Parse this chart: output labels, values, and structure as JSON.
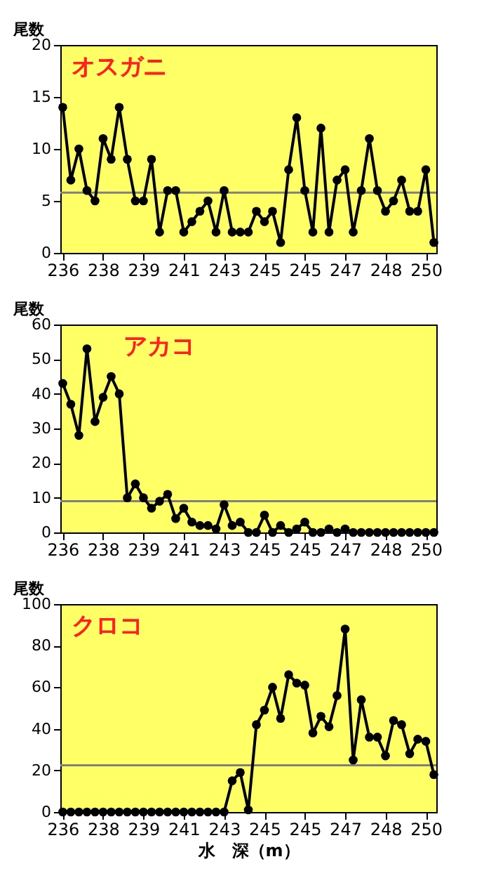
{
  "chart_data": [
    {
      "type": "line",
      "title": "オスガニ",
      "ylabel": "尾数",
      "categories": [
        "236",
        null,
        null,
        null,
        null,
        "238",
        null,
        null,
        null,
        null,
        "239",
        null,
        null,
        null,
        null,
        "241",
        null,
        null,
        null,
        null,
        "243",
        null,
        null,
        null,
        null,
        "245",
        null,
        null,
        null,
        null,
        "245",
        null,
        null,
        null,
        null,
        "247",
        null,
        null,
        null,
        null,
        "248",
        null,
        null,
        null,
        null,
        "250",
        null
      ],
      "series": [
        {
          "color": "#000000",
          "values": [
            14,
            7,
            10,
            6,
            5,
            11,
            9,
            14,
            9,
            5,
            5,
            9,
            2,
            6,
            6,
            2,
            3,
            4,
            5,
            2,
            6,
            2,
            2,
            2,
            4,
            3,
            4,
            1,
            8,
            13,
            6,
            2,
            12,
            2,
            7,
            8,
            2,
            6,
            11,
            6,
            4,
            5,
            7,
            4,
            4,
            8,
            1
          ]
        }
      ],
      "marker": "circle",
      "line_style": "solid",
      "ylim": [
        0,
        20
      ],
      "yticks": [
        0,
        5,
        10,
        15,
        20
      ],
      "grid": false,
      "ref_lines": [
        {
          "axis": "y",
          "value": 5.8,
          "color": "#808080"
        }
      ]
    },
    {
      "type": "line",
      "title": "アカコ",
      "ylabel": "尾数",
      "categories": [
        "236",
        null,
        null,
        null,
        null,
        "238",
        null,
        null,
        null,
        null,
        "239",
        null,
        null,
        null,
        null,
        "241",
        null,
        null,
        null,
        null,
        "243",
        null,
        null,
        null,
        null,
        "245",
        null,
        null,
        null,
        null,
        "245",
        null,
        null,
        null,
        null,
        "247",
        null,
        null,
        null,
        null,
        "248",
        null,
        null,
        null,
        null,
        "250",
        null
      ],
      "series": [
        {
          "color": "#000000",
          "values": [
            43,
            37,
            28,
            53,
            32,
            39,
            45,
            40,
            10,
            14,
            10,
            7,
            9,
            11,
            4,
            7,
            3,
            2,
            2,
            1,
            8,
            2,
            3,
            0,
            0,
            5,
            0,
            2,
            0,
            1,
            3,
            0,
            0,
            1,
            0,
            1,
            0,
            0,
            0,
            0,
            0,
            0,
            0,
            0,
            0,
            0,
            0
          ]
        }
      ],
      "marker": "circle",
      "line_style": "solid",
      "ylim": [
        0,
        60
      ],
      "yticks": [
        0,
        10,
        20,
        30,
        40,
        50,
        60
      ],
      "grid": false,
      "ref_lines": [
        {
          "axis": "y",
          "value": 9,
          "color": "#808080"
        }
      ]
    },
    {
      "type": "line",
      "title": "クロコ",
      "ylabel": "尾数",
      "xlabel": "水　深（m）",
      "categories": [
        "236",
        null,
        null,
        null,
        null,
        "238",
        null,
        null,
        null,
        null,
        "239",
        null,
        null,
        null,
        null,
        "241",
        null,
        null,
        null,
        null,
        "243",
        null,
        null,
        null,
        null,
        "245",
        null,
        null,
        null,
        null,
        "245",
        null,
        null,
        null,
        null,
        "247",
        null,
        null,
        null,
        null,
        "248",
        null,
        null,
        null,
        null,
        "250",
        null
      ],
      "series": [
        {
          "color": "#000000",
          "values": [
            0,
            0,
            0,
            0,
            0,
            0,
            0,
            0,
            0,
            0,
            0,
            0,
            0,
            0,
            0,
            0,
            0,
            0,
            0,
            0,
            0,
            15,
            19,
            1,
            42,
            49,
            60,
            45,
            66,
            62,
            61,
            38,
            46,
            41,
            56,
            88,
            25,
            54,
            36,
            36,
            27,
            44,
            42,
            28,
            35,
            34,
            18
          ]
        }
      ],
      "marker": "circle",
      "line_style": "solid",
      "ylim": [
        0,
        100
      ],
      "yticks": [
        0,
        20,
        40,
        60,
        80,
        100
      ],
      "grid": false,
      "ref_lines": [
        {
          "axis": "y",
          "value": 22.5,
          "color": "#808080"
        }
      ]
    }
  ]
}
